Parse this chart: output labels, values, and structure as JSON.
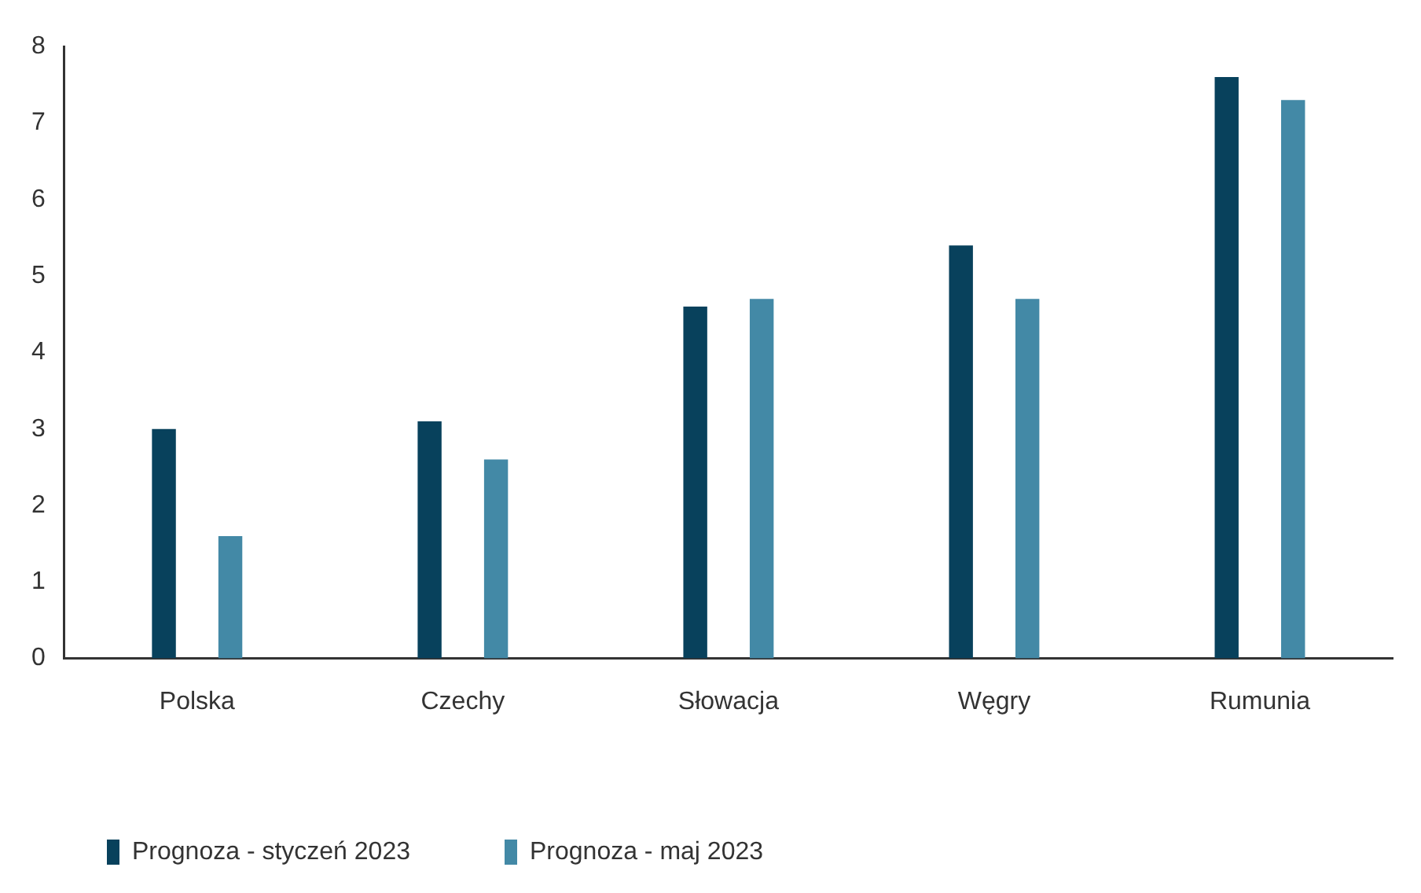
{
  "chart_data": {
    "type": "bar",
    "categories": [
      "Polska",
      "Czechy",
      "Słowacja",
      "Węgry",
      "Rumunia"
    ],
    "series": [
      {
        "name": "Prognoza - styczeń 2023",
        "color": "#08415c",
        "values": [
          3.0,
          3.1,
          4.6,
          5.4,
          7.6
        ]
      },
      {
        "name": "Prognoza - maj 2023",
        "color": "#4389a6",
        "values": [
          1.6,
          2.6,
          4.7,
          4.7,
          7.3
        ]
      }
    ],
    "ylim": [
      0,
      8
    ],
    "yticks": [
      0,
      1,
      2,
      3,
      4,
      5,
      6,
      7,
      8
    ],
    "grid": false,
    "legend": "bottom left"
  }
}
